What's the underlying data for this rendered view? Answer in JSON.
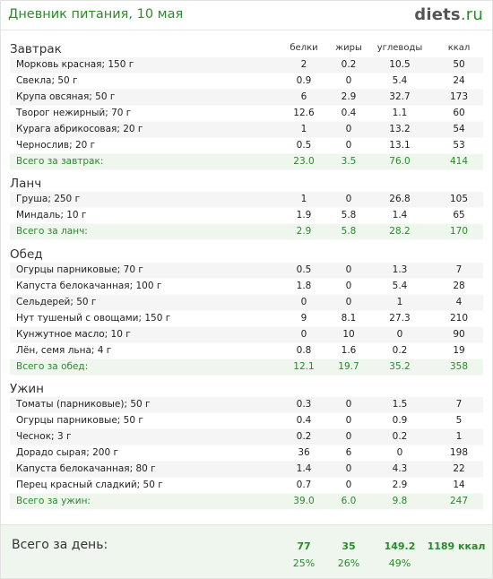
{
  "header": {
    "title": "Дневник питания, 10 мая",
    "logo_main": "diets",
    "logo_tld": ".ru"
  },
  "columns": {
    "protein": "белки",
    "fat": "жиры",
    "carbs": "углеводы",
    "kcal": "ккал"
  },
  "sections": [
    {
      "title": "Завтрак",
      "rows": [
        {
          "name": "Морковь красная; 150 г",
          "p": "2",
          "f": "0.2",
          "c": "10.5",
          "k": "50"
        },
        {
          "name": "Свекла; 50 г",
          "p": "0.9",
          "f": "0",
          "c": "5.4",
          "k": "24"
        },
        {
          "name": "Крупа овсяная; 50 г",
          "p": "6",
          "f": "2.9",
          "c": "32.7",
          "k": "173"
        },
        {
          "name": "Творог нежирный; 70 г",
          "p": "12.6",
          "f": "0.4",
          "c": "1.1",
          "k": "60"
        },
        {
          "name": "Курага абрикосовая; 20 г",
          "p": "1",
          "f": "0",
          "c": "13.2",
          "k": "54"
        },
        {
          "name": "Чернослив; 20 г",
          "p": "0.5",
          "f": "0",
          "c": "13.1",
          "k": "53"
        }
      ],
      "total": {
        "name": "Всего за завтрак:",
        "p": "23.0",
        "f": "3.5",
        "c": "76.0",
        "k": "414"
      }
    },
    {
      "title": "Ланч",
      "rows": [
        {
          "name": "Груша; 250 г",
          "p": "1",
          "f": "0",
          "c": "26.8",
          "k": "105"
        },
        {
          "name": "Миндаль; 10 г",
          "p": "1.9",
          "f": "5.8",
          "c": "1.4",
          "k": "65"
        }
      ],
      "total": {
        "name": "Всего за ланч:",
        "p": "2.9",
        "f": "5.8",
        "c": "28.2",
        "k": "170"
      }
    },
    {
      "title": "Обед",
      "rows": [
        {
          "name": "Огурцы парниковые; 70 г",
          "p": "0.5",
          "f": "0",
          "c": "1.3",
          "k": "7"
        },
        {
          "name": "Капуста белокачанная; 100 г",
          "p": "1.8",
          "f": "0",
          "c": "5.4",
          "k": "28"
        },
        {
          "name": "Сельдерей; 50 г",
          "p": "0",
          "f": "0",
          "c": "1",
          "k": "4"
        },
        {
          "name": "Нут тушеный с овощами; 150 г",
          "p": "9",
          "f": "8.1",
          "c": "27.3",
          "k": "210"
        },
        {
          "name": "Кунжутное масло; 10 г",
          "p": "0",
          "f": "10",
          "c": "0",
          "k": "90"
        },
        {
          "name": "Лён, семя льна; 4 г",
          "p": "0.8",
          "f": "1.6",
          "c": "0.2",
          "k": "19"
        }
      ],
      "total": {
        "name": "Всего за обед:",
        "p": "12.1",
        "f": "19.7",
        "c": "35.2",
        "k": "358"
      }
    },
    {
      "title": "Ужин",
      "rows": [
        {
          "name": "Томаты (парниковые); 50 г",
          "p": "0.3",
          "f": "0",
          "c": "1.5",
          "k": "7"
        },
        {
          "name": "Огурцы парниковые; 50 г",
          "p": "0.4",
          "f": "0",
          "c": "0.9",
          "k": "5"
        },
        {
          "name": "Чеснок; 3 г",
          "p": "0.2",
          "f": "0",
          "c": "0.2",
          "k": "1"
        },
        {
          "name": "Дорадо сырая; 200 г",
          "p": "36",
          "f": "6",
          "c": "0",
          "k": "198"
        },
        {
          "name": "Капуста белокачанная; 80 г",
          "p": "1.4",
          "f": "0",
          "c": "4.3",
          "k": "22"
        },
        {
          "name": "Перец красный сладкий; 50 г",
          "p": "0.7",
          "f": "0",
          "c": "2.9",
          "k": "14"
        }
      ],
      "total": {
        "name": "Всего за ужин:",
        "p": "39.0",
        "f": "6.0",
        "c": "9.8",
        "k": "247"
      }
    }
  ],
  "day_total": {
    "label": "Всего за день:",
    "p": "77",
    "f": "35",
    "c": "149.2",
    "k": "1189 ккал",
    "pct_p": "25%",
    "pct_f": "26%",
    "pct_c": "49%"
  }
}
